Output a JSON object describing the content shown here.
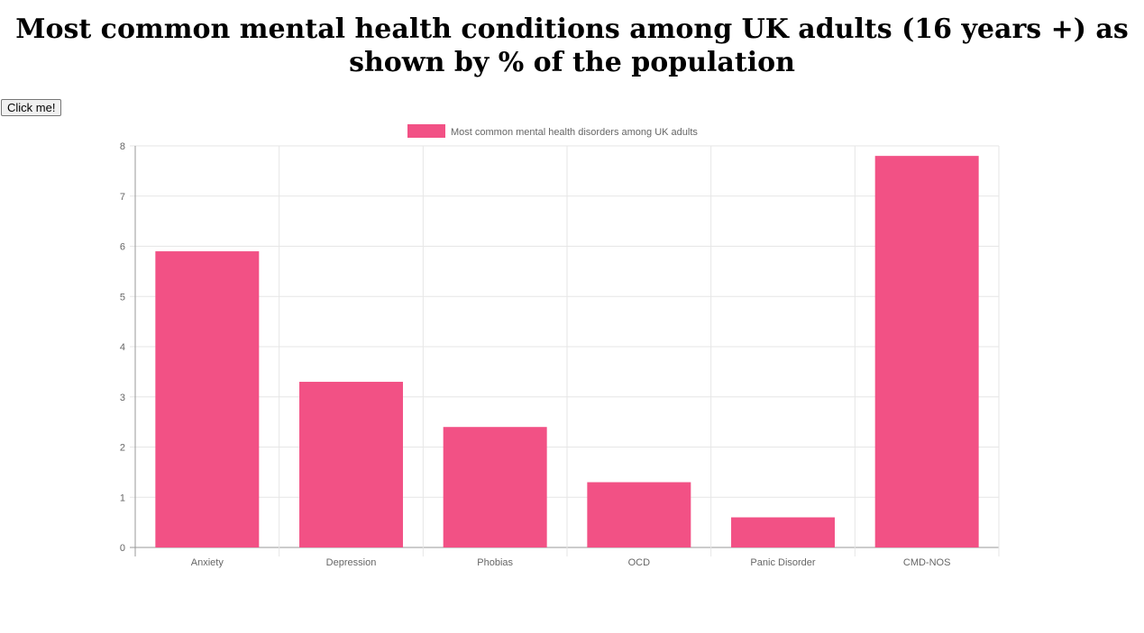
{
  "page": {
    "title": "Most common mental health conditions among UK adults (16 years +) as shown by % of the population",
    "button_label": "Click me!"
  },
  "colors": {
    "bar_fill": "#f25185",
    "grid": "#e6e6e6",
    "axis": "#999999",
    "text": "#666666"
  },
  "chart_data": {
    "type": "bar",
    "title": "",
    "xlabel": "",
    "ylabel": "",
    "categories": [
      "Anxiety",
      "Depression",
      "Phobias",
      "OCD",
      "Panic Disorder",
      "CMD-NOS"
    ],
    "series": [
      {
        "name": "Most common mental health disorders among UK adults",
        "values": [
          5.9,
          3.3,
          2.4,
          1.3,
          0.6,
          7.8
        ]
      }
    ],
    "ylim": [
      0,
      8
    ],
    "yticks": [
      "0",
      "1",
      "2",
      "3",
      "4",
      "5",
      "6",
      "7",
      "8"
    ],
    "grid": true,
    "legend_position": "top-center"
  }
}
